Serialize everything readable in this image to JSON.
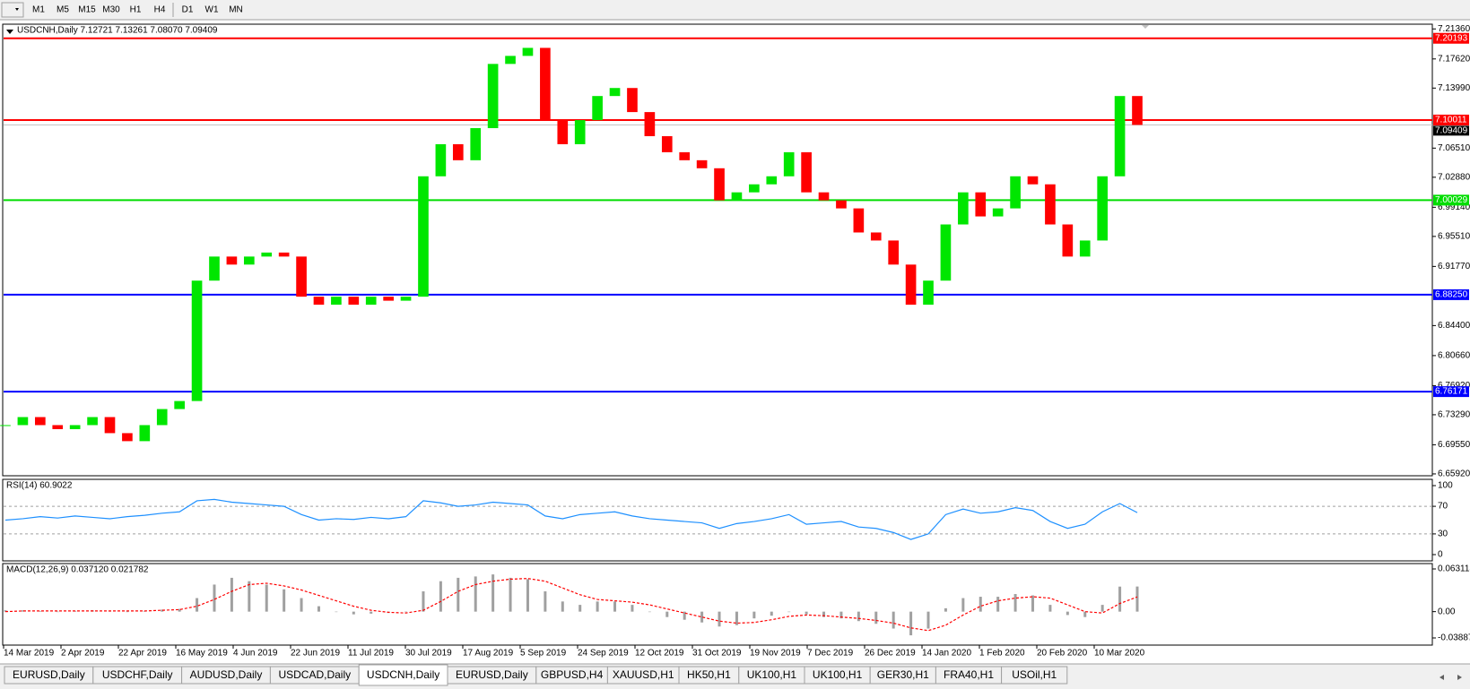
{
  "toolbar": {
    "timeframes": [
      "M1",
      "M5",
      "M15",
      "M30",
      "H1",
      "H4",
      "D1",
      "W1",
      "MN"
    ]
  },
  "tabs": {
    "items": [
      "EURUSD,Daily",
      "USDCHF,Daily",
      "AUDUSD,Daily",
      "USDCAD,Daily",
      "USDCNH,Daily",
      "EURUSD,Daily",
      "GBPUSD,H4",
      "XAUUSD,H1",
      "HK50,H1",
      "UK100,H1",
      "UK100,H1",
      "GER30,H1",
      "FRA40,H1",
      "USOil,H1"
    ],
    "active": 4
  },
  "chart_data": [
    {
      "type": "candlestick",
      "title": "USDCNH,Daily  7.12721 7.13261 7.08070 7.09409",
      "x_labels": [
        "14 Mar 2019",
        "2 Apr 2019",
        "22 Apr 2019",
        "16 May 2019",
        "4 Jun 2019",
        "22 Jun 2019",
        "11 Jul 2019",
        "30 Jul 2019",
        "17 Aug 2019",
        "5 Sep 2019",
        "24 Sep 2019",
        "12 Oct 2019",
        "31 Oct 2019",
        "19 Nov 2019",
        "7 Dec 2019",
        "26 Dec 2019",
        "14 Jan 2020",
        "1 Feb 2020",
        "20 Feb 2020",
        "10 Mar 2020"
      ],
      "closes": [
        6.72,
        6.73,
        6.72,
        6.715,
        6.72,
        6.73,
        6.71,
        6.7,
        6.72,
        6.74,
        6.75,
        6.9,
        6.93,
        6.92,
        6.93,
        6.935,
        6.93,
        6.88,
        6.87,
        6.88,
        6.87,
        6.88,
        6.875,
        6.88,
        7.03,
        7.07,
        7.05,
        7.09,
        7.17,
        7.18,
        7.19,
        7.1,
        7.07,
        7.1,
        7.13,
        7.14,
        7.11,
        7.08,
        7.06,
        7.05,
        7.04,
        7.0,
        7.01,
        7.02,
        7.03,
        7.06,
        7.01,
        7.0,
        6.99,
        6.96,
        6.95,
        6.92,
        6.87,
        6.9,
        6.97,
        7.01,
        6.98,
        6.99,
        7.03,
        7.02,
        6.97,
        6.93,
        6.95,
        7.03,
        7.13,
        7.094
      ],
      "up_color": "#00e600",
      "down_color": "#ff0000",
      "ylim": [
        6.6569,
        7.2195
      ],
      "yticks": [
        {
          "value": 7.2136,
          "label": "7.21360"
        },
        {
          "value": 7.1762,
          "label": "7.17620"
        },
        {
          "value": 7.1399,
          "label": "7.13990"
        },
        {
          "value": 7.0651,
          "label": "7.06510"
        },
        {
          "value": 7.0288,
          "label": "7.02880"
        },
        {
          "value": 6.9914,
          "label": "6.99140"
        },
        {
          "value": 6.9551,
          "label": "6.95510"
        },
        {
          "value": 6.9177,
          "label": "6.91770"
        },
        {
          "value": 6.844,
          "label": "6.84400"
        },
        {
          "value": 6.8066,
          "label": "6.80660"
        },
        {
          "value": 6.7692,
          "label": "6.76920"
        },
        {
          "value": 6.7329,
          "label": "6.73290"
        },
        {
          "value": 6.6955,
          "label": "6.69550"
        },
        {
          "value": 6.6592,
          "label": "6.65920"
        }
      ],
      "hlines": [
        {
          "value": 7.20193,
          "color": "#ff0000"
        },
        {
          "value": 7.10011,
          "color": "#ff0000"
        },
        {
          "value": 7.00029,
          "color": "#00dd00"
        },
        {
          "value": 6.8825,
          "label": "6.88250",
          "color": "#0000ff"
        },
        {
          "value": 6.76171,
          "color": "#0000ff"
        }
      ],
      "price_line": {
        "value": 7.09409,
        "color": "#c0c0c0"
      }
    },
    {
      "type": "line",
      "title": "RSI(14) 60.9022",
      "color": "#1e90ff",
      "values": [
        50,
        52,
        55,
        53,
        56,
        54,
        52,
        55,
        57,
        60,
        62,
        78,
        80,
        76,
        74,
        72,
        70,
        58,
        50,
        52,
        51,
        54,
        52,
        55,
        78,
        75,
        70,
        72,
        76,
        74,
        72,
        56,
        52,
        58,
        60,
        62,
        56,
        52,
        50,
        48,
        46,
        38,
        45,
        48,
        52,
        58,
        44,
        46,
        48,
        40,
        38,
        32,
        22,
        30,
        58,
        66,
        60,
        62,
        68,
        64,
        48,
        38,
        44,
        62,
        74,
        60.9022
      ],
      "ylim": [
        0,
        100
      ],
      "yticks": [
        100,
        70,
        30,
        0
      ],
      "levels": [
        70,
        30
      ]
    },
    {
      "type": "macd",
      "title": "MACD(12,26,9) 0.037120 0.021782",
      "hist_color": "#a0a0a0",
      "signal_color": "#ff0000",
      "hist": [
        0.002,
        0.002,
        0.001,
        0,
        0.001,
        0.002,
        0.001,
        0,
        0.001,
        0.003,
        0.004,
        0.02,
        0.04,
        0.05,
        0.045,
        0.04,
        0.033,
        0.02,
        0.008,
        0,
        -0.004,
        -0.003,
        -0.002,
        0,
        0.03,
        0.045,
        0.05,
        0.052,
        0.055,
        0.05,
        0.048,
        0.03,
        0.015,
        0.01,
        0.015,
        0.015,
        0.01,
        0,
        -0.008,
        -0.012,
        -0.016,
        -0.022,
        -0.02,
        -0.01,
        -0.006,
        0,
        -0.004,
        -0.008,
        -0.01,
        -0.014,
        -0.018,
        -0.025,
        -0.035,
        -0.025,
        0.005,
        0.02,
        0.022,
        0.022,
        0.026,
        0.024,
        0.01,
        -0.005,
        -0.008,
        0.01,
        0.037,
        0.03712
      ],
      "signal": [
        0,
        0.001,
        0.001,
        0.001,
        0.001,
        0.001,
        0.001,
        0.001,
        0.001,
        0.002,
        0.003,
        0.008,
        0.018,
        0.03,
        0.04,
        0.042,
        0.038,
        0.032,
        0.024,
        0.016,
        0.008,
        0.002,
        -0.001,
        -0.002,
        0.002,
        0.015,
        0.03,
        0.04,
        0.045,
        0.048,
        0.049,
        0.045,
        0.035,
        0.025,
        0.018,
        0.016,
        0.014,
        0.01,
        0.004,
        -0.002,
        -0.008,
        -0.014,
        -0.017,
        -0.016,
        -0.012,
        -0.007,
        -0.005,
        -0.006,
        -0.008,
        -0.01,
        -0.013,
        -0.017,
        -0.024,
        -0.028,
        -0.02,
        -0.005,
        0.008,
        0.016,
        0.02,
        0.022,
        0.02,
        0.01,
        0,
        -0.002,
        0.012,
        0.021782
      ],
      "ylim": [
        -0.038872,
        0.063113
      ],
      "yticks": [
        0.063113,
        {
          "value": 0,
          "label": "0.00"
        },
        -0.038872
      ]
    }
  ]
}
